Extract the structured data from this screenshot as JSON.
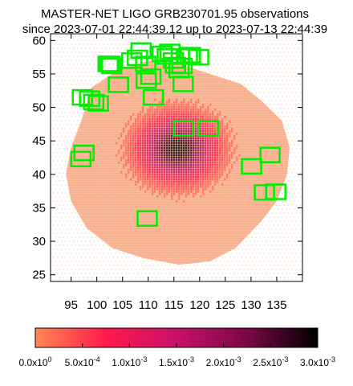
{
  "chart_data": {
    "type": "heatmap",
    "title_line1": "MASTER-NET LIGO GRB230701.95 observations",
    "title_line2": "since 2023-07-01 22:44:39.12 up to 2023-07-13 22:44:39",
    "xlabel": "",
    "ylabel": "",
    "xlim": [
      91,
      140
    ],
    "ylim": [
      24,
      61
    ],
    "x_ticks": [
      95,
      100,
      105,
      110,
      115,
      120,
      125,
      130,
      135
    ],
    "y_ticks": [
      25,
      30,
      35,
      40,
      45,
      50,
      55,
      60
    ],
    "grid": false,
    "probability_region": {
      "outline": [
        [
          99,
          53
        ],
        [
          97,
          48
        ],
        [
          95,
          44
        ],
        [
          94,
          40
        ],
        [
          95,
          36
        ],
        [
          98,
          32
        ],
        [
          103,
          29
        ],
        [
          109,
          27.5
        ],
        [
          116,
          26.5
        ],
        [
          122,
          27
        ],
        [
          127,
          29
        ],
        [
          132,
          33
        ],
        [
          135,
          36
        ],
        [
          137,
          40
        ],
        [
          137.5,
          44
        ],
        [
          136,
          48
        ],
        [
          132,
          51
        ],
        [
          128,
          53.5
        ],
        [
          122,
          55
        ],
        [
          116,
          56.5
        ],
        [
          110,
          57
        ],
        [
          104,
          55.5
        ]
      ],
      "peak_center": [
        115.5,
        44
      ],
      "max_value": 0.003
    },
    "colorbar": {
      "min": 0,
      "max": 0.003,
      "colors": [
        "#ff8855",
        "#ff1a4a",
        "#c8106a",
        "#7a0845",
        "#000000"
      ],
      "tick_labels": [
        "0.0x10^0",
        "5.0x10^-4",
        "1.0x10^-3",
        "1.5x10^-3",
        "2.0x10^-3",
        "2.5x10^-3",
        "3.0x10^-3"
      ]
    },
    "observation_color": "#00ee00",
    "observations": [
      {
        "x": 97.2,
        "y": 51.5
      },
      {
        "x": 98.6,
        "y": 51.3
      },
      {
        "x": 99.4,
        "y": 50.8
      },
      {
        "x": 100.3,
        "y": 50.6
      },
      {
        "x": 102.2,
        "y": 56.5
      },
      {
        "x": 102.6,
        "y": 56.5
      },
      {
        "x": 102.9,
        "y": 56.2
      },
      {
        "x": 104.2,
        "y": 53.4
      },
      {
        "x": 106.8,
        "y": 57.0
      },
      {
        "x": 107.9,
        "y": 57.4
      },
      {
        "x": 108.6,
        "y": 58.5
      },
      {
        "x": 109.5,
        "y": 56.5
      },
      {
        "x": 109.6,
        "y": 54.0
      },
      {
        "x": 110.5,
        "y": 54.6
      },
      {
        "x": 111.0,
        "y": 51.5
      },
      {
        "x": 112.7,
        "y": 58.0
      },
      {
        "x": 113.7,
        "y": 57.6
      },
      {
        "x": 114.2,
        "y": 58.3
      },
      {
        "x": 114.9,
        "y": 57.0
      },
      {
        "x": 115.3,
        "y": 56.3
      },
      {
        "x": 116.0,
        "y": 55.6
      },
      {
        "x": 116.6,
        "y": 56.2
      },
      {
        "x": 116.8,
        "y": 53.5
      },
      {
        "x": 117.6,
        "y": 57.6
      },
      {
        "x": 118.2,
        "y": 57.8
      },
      {
        "x": 119.8,
        "y": 57.5
      },
      {
        "x": 116.8,
        "y": 46.9
      },
      {
        "x": 121.7,
        "y": 46.9
      },
      {
        "x": 96.9,
        "y": 42.3
      },
      {
        "x": 97.5,
        "y": 43.2
      },
      {
        "x": 130.1,
        "y": 41.2
      },
      {
        "x": 133.7,
        "y": 42.9
      },
      {
        "x": 132.6,
        "y": 37.3
      },
      {
        "x": 134.8,
        "y": 37.4
      },
      {
        "x": 109.8,
        "y": 33.4
      }
    ]
  }
}
